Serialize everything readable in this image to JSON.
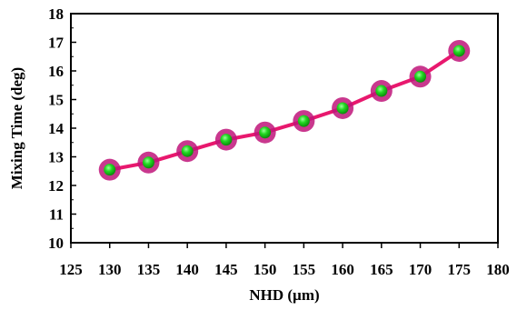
{
  "chart_data": {
    "type": "line",
    "title": "",
    "xlabel": "NHD (µm)",
    "ylabel": "Mixing Time (deg)",
    "xlim": [
      125,
      180
    ],
    "ylim": [
      10,
      18
    ],
    "xticks": [
      125,
      130,
      135,
      140,
      145,
      150,
      155,
      160,
      165,
      170,
      175,
      180
    ],
    "yticks": [
      10,
      11,
      12,
      13,
      14,
      15,
      16,
      17,
      18
    ],
    "grid": false,
    "legend": "none",
    "series": [
      {
        "x": [
          130,
          135,
          140,
          145,
          150,
          155,
          160,
          165,
          170,
          175
        ],
        "y": [
          12.55,
          12.8,
          13.2,
          13.6,
          13.85,
          14.25,
          14.7,
          15.3,
          15.8,
          16.7
        ],
        "line_color": "#e8186e",
        "marker_fill": "#22d822",
        "marker_edge": "#c0157a"
      }
    ]
  }
}
